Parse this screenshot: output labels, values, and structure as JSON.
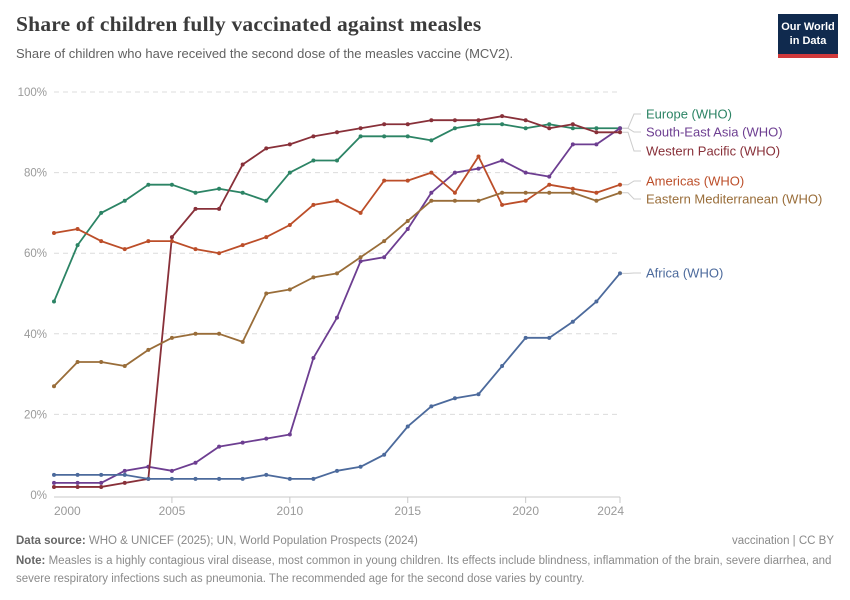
{
  "header": {
    "title": "Share of children fully vaccinated against measles",
    "subtitle": "Share of children who have received the second dose of the measles vaccine (MCV2).",
    "logo": {
      "line1": "Our World",
      "line2": "in Data",
      "bg": "#102a4e",
      "accent": "#d0393b"
    }
  },
  "chart_data": {
    "type": "line",
    "title": "Share of children fully vaccinated against measles",
    "x": [
      2000,
      2001,
      2002,
      2003,
      2004,
      2005,
      2006,
      2007,
      2008,
      2009,
      2010,
      2011,
      2012,
      2013,
      2014,
      2015,
      2016,
      2017,
      2018,
      2019,
      2020,
      2021,
      2022,
      2023,
      2024
    ],
    "series": [
      {
        "name": "Europe (WHO)",
        "color": "#2c8465",
        "values": [
          48,
          62,
          70,
          73,
          77,
          77,
          75,
          76,
          75,
          73,
          80,
          83,
          83,
          89,
          89,
          89,
          88,
          91,
          92,
          92,
          91,
          92,
          91,
          91,
          91
        ]
      },
      {
        "name": "South-East Asia (WHO)",
        "color": "#6d3e91",
        "values": [
          3,
          3,
          3,
          6,
          7,
          6,
          8,
          12,
          13,
          14,
          15,
          34,
          44,
          58,
          59,
          66,
          75,
          80,
          81,
          83,
          80,
          79,
          87,
          87,
          91
        ]
      },
      {
        "name": "Western Pacific (WHO)",
        "color": "#883039",
        "values": [
          2,
          2,
          2,
          3,
          4,
          64,
          71,
          71,
          82,
          86,
          87,
          89,
          90,
          91,
          92,
          92,
          93,
          93,
          93,
          94,
          93,
          91,
          92,
          90,
          90
        ]
      },
      {
        "name": "Americas (WHO)",
        "color": "#bc4e29",
        "values": [
          65,
          66,
          63,
          61,
          63,
          63,
          61,
          60,
          62,
          64,
          67,
          72,
          73,
          70,
          78,
          78,
          80,
          75,
          84,
          72,
          73,
          77,
          76,
          75,
          77
        ]
      },
      {
        "name": "Eastern Mediterranean (WHO)",
        "color": "#996d39",
        "values": [
          27,
          33,
          33,
          32,
          36,
          39,
          40,
          40,
          38,
          50,
          51,
          54,
          55,
          59,
          63,
          68,
          73,
          73,
          73,
          75,
          75,
          75,
          75,
          73,
          75
        ]
      },
      {
        "name": "Africa (WHO)",
        "color": "#4c6a9c",
        "values": [
          5,
          5,
          5,
          5,
          4,
          4,
          4,
          4,
          4,
          5,
          4,
          4,
          6,
          7,
          10,
          17,
          22,
          24,
          25,
          32,
          39,
          39,
          43,
          48,
          55
        ]
      }
    ],
    "ylim": [
      0,
      100
    ],
    "yticks": [
      0,
      20,
      40,
      60,
      80,
      100
    ],
    "ytick_suffix": "%",
    "xticks": [
      2000,
      2005,
      2010,
      2015,
      2020,
      2024
    ],
    "grid": "horizontal-dashed",
    "legend_position": "right-of-line-ends"
  },
  "footer": {
    "datasource_label": "Data source:",
    "datasource": "WHO & UNICEF (2025); UN, World Population Prospects (2024)",
    "license": "vaccination | CC BY",
    "note_label": "Note:",
    "note": "Measles is a highly contagious viral disease, most common in young children. Its effects include blindness, inflammation of the brain, severe diarrhea, and severe respiratory infections such as pneumonia. The recommended age for the second dose varies by country."
  }
}
